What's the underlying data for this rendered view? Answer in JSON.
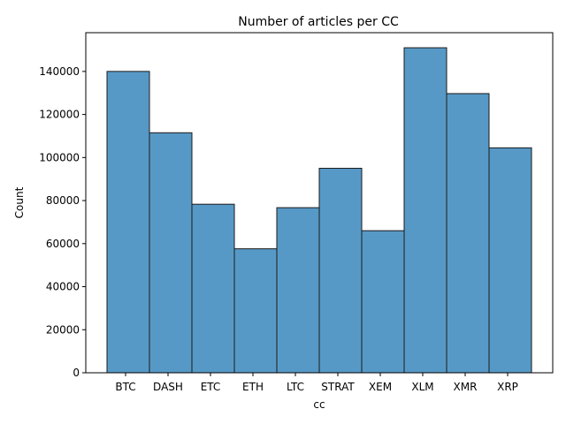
{
  "chart_data": {
    "type": "bar",
    "title": "Number of articles per CC",
    "xlabel": "cc",
    "ylabel": "Count",
    "categories": [
      "BTC",
      "DASH",
      "ETC",
      "ETH",
      "LTC",
      "STRAT",
      "XEM",
      "XLM",
      "XMR",
      "XRP"
    ],
    "values": [
      140000,
      111500,
      78300,
      57600,
      76700,
      95000,
      66000,
      151000,
      129700,
      104500
    ],
    "ylim": [
      0,
      158000
    ],
    "yticks": [
      0,
      20000,
      40000,
      60000,
      80000,
      100000,
      120000,
      140000
    ],
    "ytick_labels": [
      "0",
      "20000",
      "40000",
      "60000",
      "80000",
      "100000",
      "120000",
      "140000"
    ],
    "grid": false,
    "legend": "none",
    "colors": {
      "bar_fill": "#5799c6",
      "bar_edge": "#1a1a1a",
      "axis": "#000000"
    }
  }
}
